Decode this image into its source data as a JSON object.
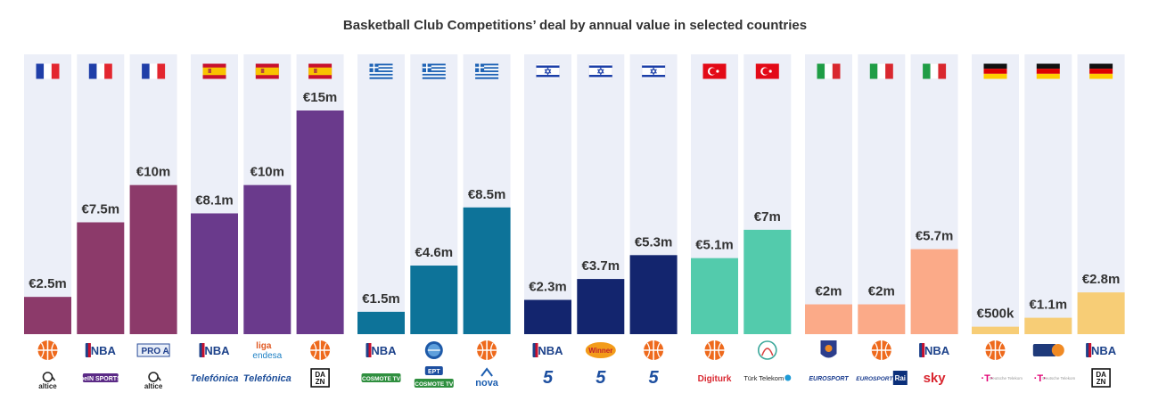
{
  "chart_data": {
    "type": "bar",
    "title": "Basketball Club Competitions’ deal by annual value in selected countries",
    "value_unit": "EUR million per year",
    "ylim": [
      0,
      15
    ],
    "grid": false,
    "legend": "none",
    "groups": [
      {
        "country": "France",
        "flag": "flag-france",
        "color": "#8c3a6a",
        "bars": [
          {
            "value": 2.5,
            "label": "€2.5m",
            "competition": "EuroLeague",
            "broadcaster": "altice"
          },
          {
            "value": 7.5,
            "label": "€7.5m",
            "competition": "NBA",
            "broadcaster": "beIN SPORTS"
          },
          {
            "value": 10,
            "label": "€10m",
            "competition": "LNB Pro A",
            "broadcaster": "altice"
          }
        ]
      },
      {
        "country": "Spain",
        "flag": "flag-spain",
        "color": "#6a3a8c",
        "bars": [
          {
            "value": 8.1,
            "label": "€8.1m",
            "competition": "NBA",
            "broadcaster": "Telefónica"
          },
          {
            "value": 10,
            "label": "€10m",
            "competition": "Liga Endesa",
            "broadcaster": "Telefónica"
          },
          {
            "value": 15,
            "label": "€15m",
            "competition": "EuroLeague",
            "broadcaster": "DAZN"
          }
        ]
      },
      {
        "country": "Greece",
        "flag": "flag-greece",
        "color": "#0d7399",
        "bars": [
          {
            "value": 1.5,
            "label": "€1.5m",
            "competition": "NBA",
            "broadcaster": "Cosmote TV"
          },
          {
            "value": 4.6,
            "label": "€4.6m",
            "competition": "Greek Basket League",
            "broadcaster": "ERT / Cosmote TV"
          },
          {
            "value": 8.5,
            "label": "€8.5m",
            "competition": "EuroLeague",
            "broadcaster": "Nova"
          }
        ]
      },
      {
        "country": "Israel",
        "flag": "flag-israel",
        "color": "#13256e",
        "bars": [
          {
            "value": 2.3,
            "label": "€2.3m",
            "competition": "NBA",
            "broadcaster": "Sport 5"
          },
          {
            "value": 3.7,
            "label": "€3.7m",
            "competition": "Winner League",
            "broadcaster": "Sport 5"
          },
          {
            "value": 5.3,
            "label": "€5.3m",
            "competition": "EuroLeague",
            "broadcaster": "Sport 5"
          }
        ]
      },
      {
        "country": "Turkey",
        "flag": "flag-turkey",
        "color": "#53cbac",
        "bars": [
          {
            "value": 5.1,
            "label": "€5.1m",
            "competition": "EuroLeague",
            "broadcaster": "Digiturk"
          },
          {
            "value": 7,
            "label": "€7m",
            "competition": "Turkish Super League",
            "broadcaster": "Türk Telekom"
          }
        ]
      },
      {
        "country": "Italy",
        "flag": "flag-italy",
        "color": "#fbaa88",
        "bars": [
          {
            "value": 2,
            "label": "€2m",
            "competition": "Lega Basket Serie A",
            "broadcaster": "Eurosport"
          },
          {
            "value": 2,
            "label": "€2m",
            "competition": "EuroLeague",
            "broadcaster": "Eurosport / Rai"
          },
          {
            "value": 5.7,
            "label": "€5.7m",
            "competition": "NBA",
            "broadcaster": "Sky"
          }
        ]
      },
      {
        "country": "Germany",
        "flag": "flag-germany",
        "color": "#f7cd76",
        "bars": [
          {
            "value": 0.5,
            "label": "€500k",
            "competition": "EuroLeague",
            "broadcaster": "Deutsche Telekom"
          },
          {
            "value": 1.1,
            "label": "€1.1m",
            "competition": "easyCredit BBL",
            "broadcaster": "Deutsche Telekom"
          },
          {
            "value": 2.8,
            "label": "€2.8m",
            "competition": "NBA",
            "broadcaster": "DAZN"
          }
        ]
      }
    ]
  },
  "logos": {
    "nba": "NBA",
    "nova": "nova",
    "sky": "sky",
    "rai": "Rai",
    "altice": "altice",
    "bein": "beIN SPORTS",
    "telefonica": "Telefónica",
    "dazn_top": "DA",
    "dazn_bottom": "ZN",
    "liga_top": "liga",
    "liga_bottom": "endesa",
    "cosmote": "COSMOTE TV",
    "ert": "EPT",
    "digiturk": "Digiturk",
    "turktelekom": "Türk Telekom",
    "eurosport": "EUROSPORT",
    "deutsche_telekom": "Deutsche Telekom",
    "pro_a": "PRO A",
    "sport5": "5",
    "winner": "Winner"
  }
}
